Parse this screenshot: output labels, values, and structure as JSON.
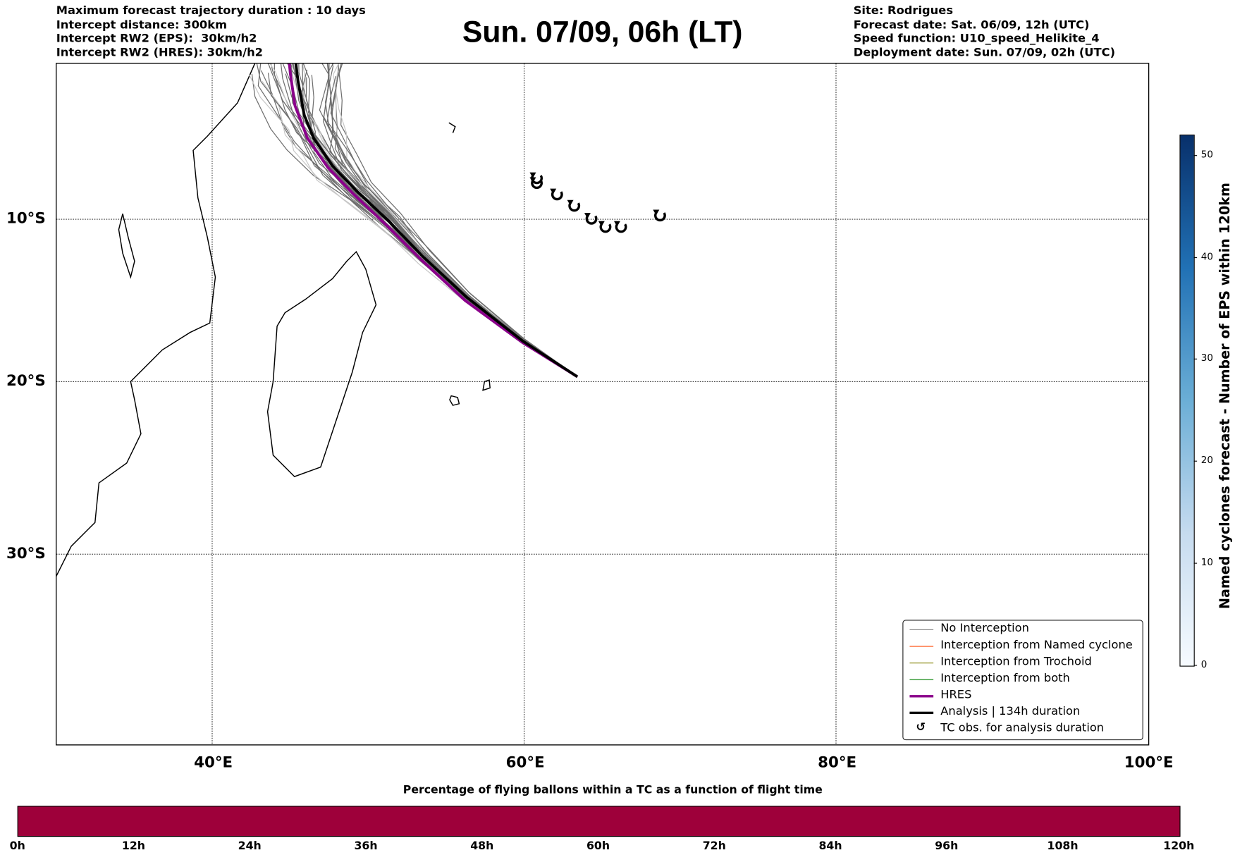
{
  "header_left": [
    "Maximum forecast trajectory duration : 10 days",
    "Intercept distance: 300km",
    "Intercept RW2 (EPS):  30km/h2",
    "Intercept RW2 (HRES): 30km/h2"
  ],
  "title": "Sun. 07/09, 06h (LT)",
  "header_right": [
    "Site: Rodrigues",
    "Forecast date: Sat. 06/09, 12h (UTC)",
    "Speed function: U10_speed_Helikite_4",
    "Deployment date: Sun. 07/09, 02h (UTC)"
  ],
  "map": {
    "lon_labels": [
      "40°E",
      "60°E",
      "80°E",
      "100°E"
    ],
    "lat_labels": [
      "10°S",
      "20°S",
      "30°S"
    ],
    "analysis_track": [
      [
        63.4,
        -19.7
      ],
      [
        59.9,
        -17.5
      ],
      [
        56.3,
        -14.8
      ],
      [
        53.5,
        -12.3
      ],
      [
        51.3,
        -10.1
      ],
      [
        49.3,
        -8.3
      ],
      [
        47.7,
        -6.7
      ],
      [
        46.5,
        -5.0
      ],
      [
        45.9,
        -3.6
      ],
      [
        45.5,
        -1.5
      ],
      [
        45.3,
        0
      ]
    ],
    "hres_track": [
      [
        63.4,
        -19.7
      ],
      [
        59.9,
        -17.6
      ],
      [
        56.2,
        -15.0
      ],
      [
        53.4,
        -12.5
      ],
      [
        51.1,
        -10.3
      ],
      [
        49.0,
        -8.4
      ],
      [
        47.4,
        -6.8
      ],
      [
        46.1,
        -5.0
      ],
      [
        45.3,
        -3.0
      ],
      [
        45.0,
        -1.0
      ],
      [
        44.9,
        0
      ]
    ],
    "ensemble_members": 40,
    "tc_obs": [
      [
        60.8,
        -7.5
      ],
      [
        60.8,
        -7.8
      ],
      [
        62.1,
        -8.5
      ],
      [
        63.2,
        -9.2
      ],
      [
        64.3,
        -10.0
      ],
      [
        65.2,
        -10.5
      ],
      [
        66.2,
        -10.5
      ],
      [
        68.7,
        -9.8
      ]
    ],
    "tc_glyph": "↺"
  },
  "legend": [
    {
      "label": "No Interception",
      "color": "#808080"
    },
    {
      "label": "Interception from Named cyclone",
      "color": "#ff4500"
    },
    {
      "label": "Interception from Trochoid",
      "color": "#808000"
    },
    {
      "label": "Interception from both",
      "color": "#008000"
    },
    {
      "label": "HRES",
      "color": "#8b008b"
    },
    {
      "label": "Analysis | 134h duration",
      "color": "#000000"
    },
    {
      "label": "TC obs. for analysis duration",
      "color": "#000000"
    }
  ],
  "colorbar": {
    "title": "Named cyclones forecast - Number of EPS within 120km",
    "ticks": [
      "0",
      "10",
      "20",
      "30",
      "40",
      "50"
    ],
    "max": 52
  },
  "percent_bar": {
    "title": "Percentage of flying ballons within a TC as a function of flight time",
    "ticks": [
      "0h",
      "12h",
      "24h",
      "36h",
      "48h",
      "60h",
      "72h",
      "84h",
      "96h",
      "108h",
      "120h"
    ],
    "color": "#9e003a"
  }
}
